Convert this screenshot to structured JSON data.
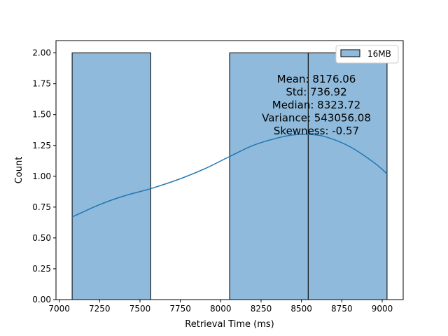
{
  "chart_data": {
    "type": "histogram",
    "xlabel": "Retrieval Time (ms)",
    "ylabel": "Count",
    "xlim": [
      6980,
      9130
    ],
    "ylim": [
      0,
      2.1
    ],
    "xticks": [
      7000,
      7250,
      7500,
      7750,
      8000,
      8250,
      8500,
      8750,
      9000
    ],
    "xtick_labels": [
      "7000",
      "7250",
      "7500",
      "7750",
      "8000",
      "8250",
      "8500",
      "8750",
      "9000"
    ],
    "yticks": [
      0,
      0.25,
      0.5,
      0.75,
      1.0,
      1.25,
      1.5,
      1.75,
      2.0
    ],
    "ytick_labels": [
      "0.00",
      "0.25",
      "0.50",
      "0.75",
      "1.00",
      "1.25",
      "1.50",
      "1.75",
      "2.00"
    ],
    "bins": [
      {
        "x0": 7080,
        "x1": 7567,
        "count": 2
      },
      {
        "x0": 7567,
        "x1": 8055,
        "count": 0
      },
      {
        "x0": 8055,
        "x1": 8542,
        "count": 2
      },
      {
        "x0": 8542,
        "x1": 9030,
        "count": 2
      }
    ],
    "kde": {
      "x": [
        7080,
        7250,
        7400,
        7567,
        7750,
        7900,
        8055,
        8200,
        8350,
        8450,
        8542,
        8650,
        8800,
        8950,
        9030
      ],
      "y": [
        0.67,
        0.77,
        0.84,
        0.9,
        0.98,
        1.06,
        1.16,
        1.25,
        1.31,
        1.335,
        1.34,
        1.32,
        1.24,
        1.11,
        1.02
      ]
    },
    "legend": {
      "label": "16MB",
      "position": "top-right"
    },
    "stats": [
      "Mean: 8176.06",
      "Std: 736.92",
      "Median: 8323.72",
      "Variance: 543056.08",
      "Skewness: -0.57"
    ],
    "colors": {
      "bar_fill": "#8fbadb",
      "bar_edge": "#000000",
      "kde_line": "#1f77b4"
    }
  }
}
